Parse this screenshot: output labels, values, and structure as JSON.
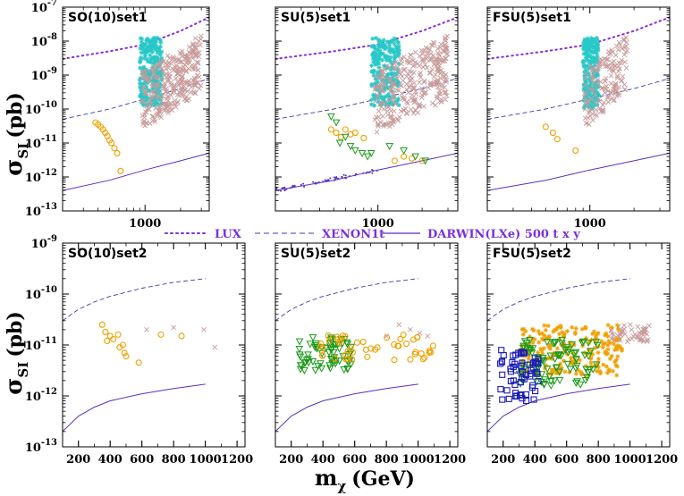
{
  "figure": {
    "ylabel_main": "σ",
    "ylabel_sub": "SI",
    "ylabel_unit": "(pb)",
    "xlabel_main": "m",
    "xlabel_sub": "χ",
    "xlabel_unit": "(GeV)"
  },
  "legend": {
    "entries": [
      {
        "label": "LUX",
        "style": "dotted",
        "color": "#7b2fd9"
      },
      {
        "label": "XENON1t",
        "style": "dashed",
        "color": "#3b3bb8"
      },
      {
        "label": "DARWIN(LXe) 500 t x y",
        "style": "solid",
        "color": "#5b2fc0"
      }
    ]
  },
  "colors": {
    "lux": "#8a2be2",
    "xenon": "#3b3bb8",
    "darwin": "#5b2fc0",
    "cyan": "#28c8c8",
    "rosy": "#c89a9a",
    "orange": "#f0a000",
    "green": "#1a9a1a",
    "blue": "#1a1ab8"
  },
  "chart_data": [
    {
      "id": "p1",
      "type": "scatter",
      "title": "SO(10)set1",
      "xscale": "log",
      "xlim": [
        200,
        3500
      ],
      "ylim_exp": [
        -13,
        -7
      ],
      "xticks": [
        1000
      ],
      "yticks_exp": [
        -13,
        -12,
        -11,
        -10,
        -9,
        -8,
        -7
      ],
      "curves": {
        "lux": [
          [
            200,
            3e-09
          ],
          [
            500,
            5e-09
          ],
          [
            1000,
            8e-09
          ],
          [
            2000,
            2e-08
          ],
          [
            3500,
            5e-08
          ]
        ],
        "xenon": [
          [
            200,
            5e-11
          ],
          [
            500,
            1e-10
          ],
          [
            1000,
            2e-10
          ],
          [
            2000,
            4e-10
          ],
          [
            3500,
            8e-10
          ]
        ],
        "darwin": [
          [
            200,
            4e-13
          ],
          [
            500,
            8e-13
          ],
          [
            1000,
            1.6e-12
          ],
          [
            2000,
            3e-12
          ],
          [
            3500,
            5e-12
          ]
        ]
      },
      "series": [
        {
          "name": "orange-circles",
          "marker": "circle",
          "color": "#f0a000",
          "x": [
            380,
            400,
            420,
            440,
            460,
            480,
            500,
            520,
            550,
            580,
            620
          ],
          "y": [
            4e-11,
            3.5e-11,
            3e-11,
            2.5e-11,
            2e-11,
            1.6e-11,
            1.2e-11,
            1e-11,
            7e-12,
            5e-12,
            1.5e-12
          ]
        }
      ],
      "clouds": [
        {
          "name": "cyan-stars",
          "marker": "star",
          "color": "#28c8c8",
          "xrange": [
            900,
            1400
          ],
          "yrange_exp": [
            -9.9,
            -7.9
          ],
          "count": 260
        },
        {
          "name": "rosy-crosses",
          "marker": "cross",
          "color": "#c89a9a",
          "xrange": [
            950,
            3000
          ],
          "yrange_exp": [
            -10.9,
            -7.9
          ],
          "count": 300
        }
      ]
    },
    {
      "id": "p2",
      "type": "scatter",
      "title": "SU(5)set1",
      "xscale": "log",
      "xlim": [
        200,
        3500
      ],
      "ylim_exp": [
        -13,
        -7
      ],
      "xticks": [
        1000
      ],
      "yticks_exp": [
        -13,
        -12,
        -11,
        -10,
        -9,
        -8,
        -7
      ],
      "curves": {
        "lux": [
          [
            200,
            3e-09
          ],
          [
            500,
            5e-09
          ],
          [
            1000,
            8e-09
          ],
          [
            2000,
            2e-08
          ],
          [
            3500,
            5e-08
          ]
        ],
        "xenon": [
          [
            200,
            5e-11
          ],
          [
            500,
            1e-10
          ],
          [
            1000,
            2e-10
          ],
          [
            2000,
            4e-10
          ],
          [
            3500,
            8e-10
          ]
        ],
        "darwin": [
          [
            200,
            4e-13
          ],
          [
            500,
            8e-13
          ],
          [
            1000,
            1.6e-12
          ],
          [
            2000,
            3e-12
          ],
          [
            3500,
            5e-12
          ]
        ]
      },
      "series": [
        {
          "name": "orange-circles",
          "marker": "circle",
          "color": "#f0a000",
          "x": [
            480,
            520,
            560,
            600,
            650,
            700,
            800,
            1300,
            1500,
            1700,
            2000
          ],
          "y": [
            2.5e-11,
            2e-11,
            1.5e-11,
            2.5e-11,
            1.8e-11,
            2e-11,
            1.4e-11,
            3e-12,
            4e-12,
            3.5e-12,
            3e-12
          ]
        },
        {
          "name": "green-triangles",
          "marker": "triangle",
          "color": "#1a9a1a",
          "x": [
            480,
            520,
            550,
            600,
            650,
            700,
            780,
            850,
            900,
            1200,
            1500,
            1800,
            2100
          ],
          "y": [
            6e-11,
            4e-11,
            1e-11,
            1.5e-11,
            8e-12,
            6e-12,
            5e-12,
            4e-12,
            5e-12,
            8e-12,
            6e-12,
            4e-12,
            3e-12
          ]
        }
      ],
      "clouds": [
        {
          "name": "cyan-stars",
          "marker": "star",
          "color": "#28c8c8",
          "xrange": [
            900,
            1400
          ],
          "yrange_exp": [
            -9.9,
            -7.9
          ],
          "count": 240
        },
        {
          "name": "rosy-crosses",
          "marker": "cross",
          "color": "#c89a9a",
          "xrange": [
            950,
            3000
          ],
          "yrange_exp": [
            -11.1,
            -7.9
          ],
          "count": 300
        },
        {
          "name": "darwin-band",
          "marker": "dot",
          "color": "#5b2fc0",
          "xrange": [
            200,
            1000
          ],
          "yrange_exp": [
            -12.45,
            -12.2
          ],
          "count": 60
        }
      ]
    },
    {
      "id": "p3",
      "type": "scatter",
      "title": "FSU(5)set1",
      "xscale": "log",
      "xlim": [
        200,
        3500
      ],
      "ylim_exp": [
        -13,
        -7
      ],
      "xticks": [
        1000
      ],
      "yticks_exp": [
        -13,
        -12,
        -11,
        -10,
        -9,
        -8,
        -7
      ],
      "curves": {
        "lux": [
          [
            200,
            3e-09
          ],
          [
            500,
            5e-09
          ],
          [
            1000,
            8e-09
          ],
          [
            2000,
            2e-08
          ],
          [
            3500,
            5e-08
          ]
        ],
        "xenon": [
          [
            200,
            5e-11
          ],
          [
            500,
            1e-10
          ],
          [
            1000,
            2e-10
          ],
          [
            2000,
            4e-10
          ],
          [
            3500,
            8e-10
          ]
        ],
        "darwin": [
          [
            200,
            4e-13
          ],
          [
            500,
            8e-13
          ],
          [
            1000,
            1.6e-12
          ],
          [
            2000,
            3e-12
          ],
          [
            3500,
            5e-12
          ]
        ]
      },
      "series": [
        {
          "name": "orange-circles",
          "marker": "circle",
          "color": "#f0a000",
          "x": [
            500,
            560,
            600,
            800
          ],
          "y": [
            3e-11,
            2e-11,
            1.3e-11,
            6e-12
          ]
        }
      ],
      "clouds": [
        {
          "name": "cyan-stars",
          "marker": "star",
          "color": "#28c8c8",
          "xrange": [
            900,
            1150
          ],
          "yrange_exp": [
            -10,
            -7.9
          ],
          "count": 220
        },
        {
          "name": "rosy-crosses",
          "marker": "cross",
          "color": "#c89a9a",
          "xrange": [
            900,
            1800
          ],
          "yrange_exp": [
            -10.9,
            -7.9
          ],
          "count": 150
        }
      ]
    },
    {
      "id": "p4",
      "type": "scatter",
      "title": "SO(10)set2",
      "xscale": "linear",
      "xlim": [
        100,
        1250
      ],
      "ylim_exp": [
        -13,
        -9
      ],
      "xticks": [
        200,
        400,
        600,
        800,
        1000,
        1200
      ],
      "yticks_exp": [
        -13,
        -12,
        -11,
        -10,
        -9
      ],
      "curves": {
        "xenon": [
          [
            100,
            3e-11
          ],
          [
            200,
            5e-11
          ],
          [
            300,
            7e-11
          ],
          [
            400,
            9e-11
          ],
          [
            600,
            1.3e-10
          ],
          [
            800,
            1.7e-10
          ],
          [
            1000,
            2e-10
          ]
        ],
        "darwin": [
          [
            100,
            2e-13
          ],
          [
            200,
            4e-13
          ],
          [
            300,
            6e-13
          ],
          [
            400,
            8e-13
          ],
          [
            600,
            1.1e-12
          ],
          [
            800,
            1.4e-12
          ],
          [
            1000,
            1.7e-12
          ]
        ]
      },
      "series": [
        {
          "name": "orange-circles",
          "marker": "circle",
          "color": "#f0a000",
          "x": [
            350,
            370,
            380,
            400,
            420,
            450,
            460,
            480,
            490,
            500,
            580,
            720,
            850
          ],
          "y": [
            2.5e-11,
            1.8e-11,
            1.2e-11,
            1.5e-11,
            1.3e-11,
            1.6e-11,
            9e-12,
            1e-11,
            7e-12,
            6e-12,
            4.5e-12,
            1.6e-11,
            1.5e-11
          ]
        },
        {
          "name": "rosy-crosses",
          "marker": "cross",
          "color": "#c89a9a",
          "x": [
            630,
            800,
            990,
            1060
          ],
          "y": [
            2e-11,
            2.2e-11,
            2e-11,
            9e-12
          ]
        }
      ],
      "clouds": []
    },
    {
      "id": "p5",
      "type": "scatter",
      "title": "SU(5)set2",
      "xscale": "linear",
      "xlim": [
        100,
        1250
      ],
      "ylim_exp": [
        -13,
        -9
      ],
      "xticks": [
        200,
        400,
        600,
        800,
        1000,
        1200
      ],
      "yticks_exp": [
        -13,
        -12,
        -11,
        -10,
        -9
      ],
      "curves": {
        "xenon": [
          [
            100,
            3e-11
          ],
          [
            200,
            5e-11
          ],
          [
            300,
            7e-11
          ],
          [
            400,
            9e-11
          ],
          [
            600,
            1.3e-10
          ],
          [
            800,
            1.7e-10
          ],
          [
            1000,
            2e-10
          ]
        ],
        "darwin": [
          [
            100,
            2e-13
          ],
          [
            200,
            4e-13
          ],
          [
            300,
            6e-13
          ],
          [
            400,
            8e-13
          ],
          [
            600,
            1.1e-12
          ],
          [
            800,
            1.4e-12
          ],
          [
            1000,
            1.7e-12
          ]
        ]
      },
      "series": [
        {
          "name": "rosy-crosses",
          "marker": "cross",
          "color": "#c89a9a",
          "x": [
            800,
            880,
            950,
            1010,
            1060
          ],
          "y": [
            1.5e-11,
            2.5e-11,
            2e-11,
            1.7e-11,
            1.5e-11
          ]
        }
      ],
      "clouds": [
        {
          "name": "green-triangles",
          "marker": "triangle",
          "color": "#1a9a1a",
          "xrange": [
            250,
            580
          ],
          "yrange_exp": [
            -11.5,
            -10.85
          ],
          "count": 70
        },
        {
          "name": "orange-circles",
          "marker": "circle",
          "color": "#f0a000",
          "xrange": [
            380,
            1100
          ],
          "yrange_exp": [
            -11.3,
            -10.8
          ],
          "count": 50
        }
      ]
    },
    {
      "id": "p6",
      "type": "scatter",
      "title": "FSU(5)set2",
      "xscale": "linear",
      "xlim": [
        100,
        1250
      ],
      "ylim_exp": [
        -13,
        -9
      ],
      "xticks": [
        200,
        400,
        600,
        800,
        1000,
        1200
      ],
      "yticks_exp": [
        -13,
        -12,
        -11,
        -10,
        -9
      ],
      "curves": {
        "xenon": [
          [
            100,
            3e-11
          ],
          [
            200,
            5e-11
          ],
          [
            300,
            7e-11
          ],
          [
            400,
            9e-11
          ],
          [
            600,
            1.3e-10
          ],
          [
            800,
            1.7e-10
          ],
          [
            1000,
            2e-10
          ]
        ],
        "darwin": [
          [
            100,
            2e-13
          ],
          [
            200,
            4e-13
          ],
          [
            300,
            6e-13
          ],
          [
            400,
            8e-13
          ],
          [
            600,
            1.1e-12
          ],
          [
            800,
            1.4e-12
          ],
          [
            1000,
            1.7e-12
          ]
        ]
      },
      "series": [],
      "clouds": [
        {
          "name": "rosy-crosses",
          "marker": "cross",
          "color": "#c89a9a",
          "xrange": [
            880,
            1120
          ],
          "yrange_exp": [
            -10.95,
            -10.6
          ],
          "count": 60
        },
        {
          "name": "orange-stars",
          "marker": "star",
          "color": "#f0a000",
          "xrange": [
            300,
            950
          ],
          "yrange_exp": [
            -11.6,
            -10.6
          ],
          "count": 220
        },
        {
          "name": "green-triangles",
          "marker": "triangle",
          "color": "#1a9a1a",
          "xrange": [
            300,
            800
          ],
          "yrange_exp": [
            -11.8,
            -10.9
          ],
          "count": 90
        },
        {
          "name": "blue-squares",
          "marker": "square",
          "color": "#1a1ab8",
          "xrange": [
            180,
            430
          ],
          "yrange_exp": [
            -12.1,
            -11.1
          ],
          "count": 60
        }
      ]
    }
  ]
}
